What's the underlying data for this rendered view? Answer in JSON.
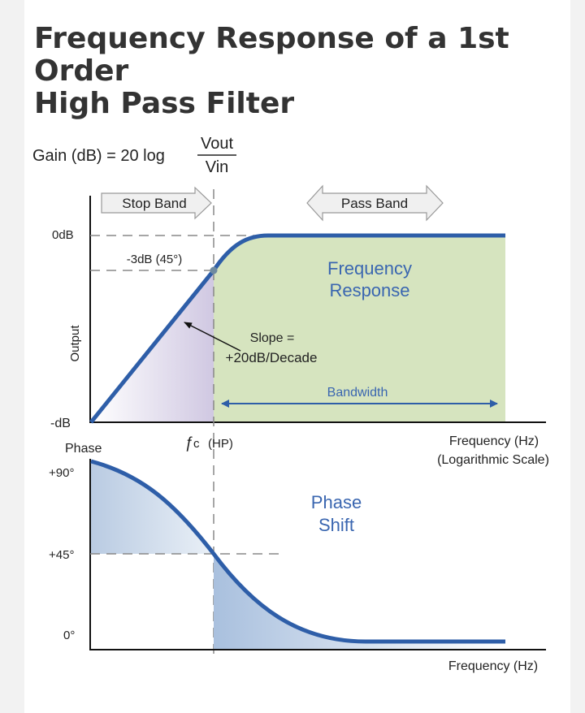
{
  "article": {
    "title_line1": "Frequency Response of a 1st Order",
    "title_line2": "High Pass Filter"
  },
  "diagram": {
    "formula": {
      "prefix": "Gain (dB) = 20 log",
      "numerator": "Vout",
      "denominator": "Vin"
    },
    "gain_plot": {
      "stop_band": "Stop Band",
      "pass_band": "Pass Band",
      "y_top": "0dB",
      "y_bottom": "-dB",
      "y_axis": "Output",
      "cutoff_point": "-3dB (45°)",
      "response_label_1": "Frequency",
      "response_label_2": "Response",
      "slope_1": "Slope =",
      "slope_2": "+20dB/Decade",
      "bandwidth": "Bandwidth",
      "fc_symbol": "ƒ",
      "fc_sub": "c",
      "fc_suffix": "(HP)",
      "x_axis_1": "Frequency (Hz)",
      "x_axis_2": "(Logarithmic Scale)"
    },
    "phase_plot": {
      "title": "Phase",
      "y_90": "+90°",
      "y_45": "+45°",
      "y_0": "0°",
      "label_1": "Phase",
      "label_2": "Shift",
      "x_axis": "Frequency (Hz)"
    },
    "colors": {
      "curve": "#2e5ea8",
      "pass_band_fill": "#d6e4bf",
      "label_blue": "#3a66b0",
      "dashed": "#888888"
    }
  }
}
